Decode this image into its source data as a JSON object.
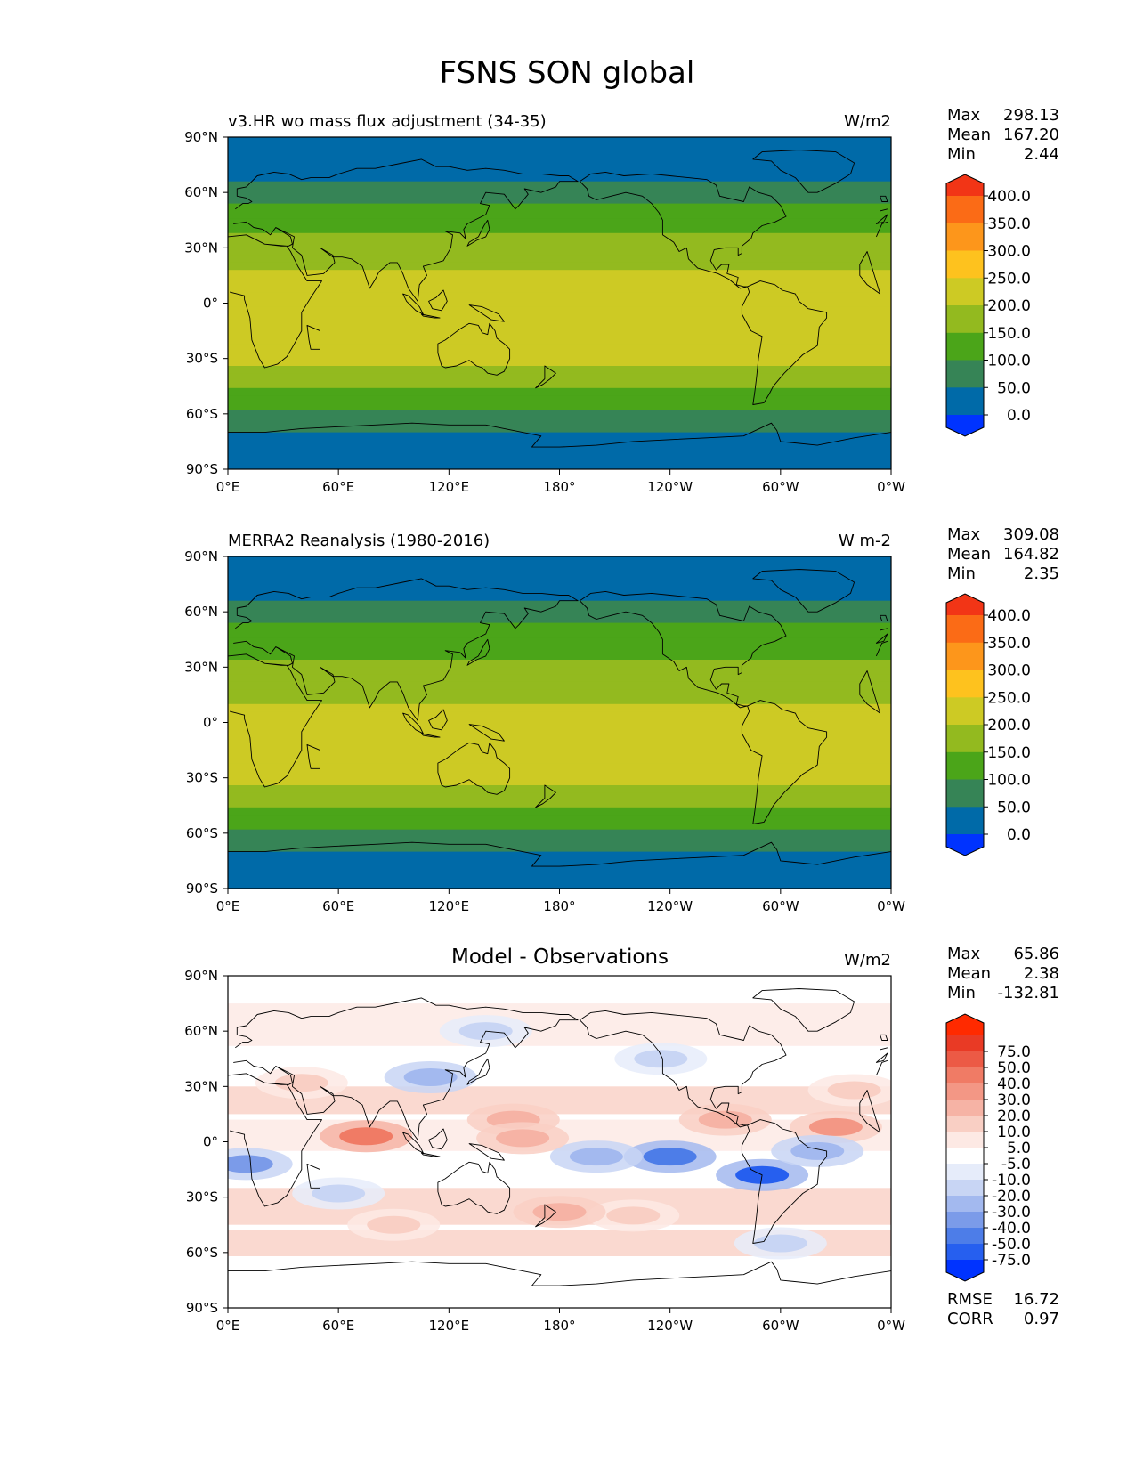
{
  "figure_title": "FSNS SON global",
  "colors": {
    "panel_ramp": [
      "#0033ff",
      "#006aa8",
      "#368456",
      "#4ba519",
      "#93ba1f",
      "#cdca24",
      "#fec21e",
      "#fd961b",
      "#fb6b16",
      "#f23516"
    ],
    "diff_ramp": [
      "#0033ff",
      "#265fef",
      "#4d7de8",
      "#7b9be9",
      "#a3b9ef",
      "#c8d5f4",
      "#e6ecfa",
      "#ffffff",
      "#fde9e4",
      "#f9cfc4",
      "#f6b3a5",
      "#f39785",
      "#f07b65",
      "#ec5a45",
      "#e93a25",
      "#ff2a00"
    ],
    "land_line": "#000000"
  },
  "x_ticks": [
    "0°E",
    "60°E",
    "120°E",
    "180°",
    "120°W",
    "60°W",
    "0°W"
  ],
  "y_ticks": [
    "90°N",
    "60°N",
    "30°N",
    "0°",
    "30°S",
    "60°S",
    "90°S"
  ],
  "stat_labels": {
    "max": "Max",
    "mean": "Mean",
    "min": "Min",
    "rmse": "RMSE",
    "corr": "CORR"
  },
  "chart_data": [
    {
      "type": "heatmap",
      "title": "v3.HR wo mass flux adjustment (34-35)",
      "units": "W/m2",
      "stats": {
        "max": "298.13",
        "mean": "167.20",
        "min": "2.44"
      },
      "colorbar_levels": [
        "0.0",
        "50.0",
        "100.0",
        "150.0",
        "200.0",
        "250.0",
        "300.0",
        "350.0",
        "400.0"
      ],
      "colorbar_extend": "both",
      "xlim": [
        0,
        360
      ],
      "ylim": [
        -90,
        90
      ],
      "lat_profile": [
        [
          90,
          30
        ],
        [
          75,
          30
        ],
        [
          68,
          45
        ],
        [
          58,
          90
        ],
        [
          50,
          110
        ],
        [
          40,
          140
        ],
        [
          30,
          170
        ],
        [
          15,
          205
        ],
        [
          0,
          220
        ],
        [
          -15,
          230
        ],
        [
          -28,
          225
        ],
        [
          -40,
          175
        ],
        [
          -52,
          120
        ],
        [
          -62,
          85
        ],
        [
          -72,
          40
        ],
        [
          -90,
          30
        ]
      ]
    },
    {
      "type": "heatmap",
      "title": "MERRA2 Reanalysis (1980-2016)",
      "units": "W m-2",
      "stats": {
        "max": "309.08",
        "mean": "164.82",
        "min": "2.35"
      },
      "colorbar_levels": [
        "0.0",
        "50.0",
        "100.0",
        "150.0",
        "200.0",
        "250.0",
        "300.0",
        "350.0",
        "400.0"
      ],
      "colorbar_extend": "both",
      "xlim": [
        0,
        360
      ],
      "ylim": [
        -90,
        90
      ],
      "lat_profile": [
        [
          90,
          30
        ],
        [
          75,
          30
        ],
        [
          68,
          45
        ],
        [
          58,
          90
        ],
        [
          50,
          110
        ],
        [
          40,
          140
        ],
        [
          30,
          160
        ],
        [
          15,
          190
        ],
        [
          0,
          215
        ],
        [
          -15,
          235
        ],
        [
          -28,
          228
        ],
        [
          -40,
          178
        ],
        [
          -52,
          122
        ],
        [
          -62,
          85
        ],
        [
          -72,
          40
        ],
        [
          -90,
          30
        ]
      ]
    },
    {
      "type": "heatmap",
      "title": "Model - Observations",
      "units": "W/m2",
      "stats": {
        "max": "65.86",
        "mean": "2.38",
        "min": "-132.81",
        "rmse": "16.72",
        "corr": "0.97"
      },
      "colorbar_levels": [
        "-75.0",
        "-50.0",
        "-40.0",
        "-30.0",
        "-20.0",
        "-10.0",
        "-5.0",
        "5.0",
        "10.0",
        "20.0",
        "30.0",
        "40.0",
        "50.0",
        "75.0"
      ],
      "colorbar_extend": "both",
      "xlim": [
        0,
        360
      ],
      "ylim": [
        -90,
        90
      ],
      "anomalies": [
        {
          "lon": 75,
          "lat": 3,
          "value": 45
        },
        {
          "lon": 110,
          "lat": 35,
          "value": -25
        },
        {
          "lon": 240,
          "lat": -8,
          "value": -45
        },
        {
          "lon": 200,
          "lat": -8,
          "value": -25
        },
        {
          "lon": 290,
          "lat": -18,
          "value": -60
        },
        {
          "lon": 10,
          "lat": -12,
          "value": -40
        },
        {
          "lon": 330,
          "lat": 8,
          "value": 30
        },
        {
          "lon": 270,
          "lat": 12,
          "value": 25
        },
        {
          "lon": 155,
          "lat": 12,
          "value": 20
        },
        {
          "lon": 220,
          "lat": -40,
          "value": 15
        },
        {
          "lon": 40,
          "lat": 32,
          "value": 15
        },
        {
          "lon": 340,
          "lat": 28,
          "value": 18
        },
        {
          "lon": 60,
          "lat": -28,
          "value": -15
        },
        {
          "lon": 180,
          "lat": -38,
          "value": 20
        },
        {
          "lon": 90,
          "lat": -45,
          "value": 18
        },
        {
          "lon": 300,
          "lat": -55,
          "value": -20
        },
        {
          "lon": 140,
          "lat": 60,
          "value": -12
        },
        {
          "lon": 235,
          "lat": 45,
          "value": -12
        },
        {
          "lon": 160,
          "lat": 2,
          "value": 25
        },
        {
          "lon": 320,
          "lat": -5,
          "value": -25
        }
      ]
    }
  ]
}
